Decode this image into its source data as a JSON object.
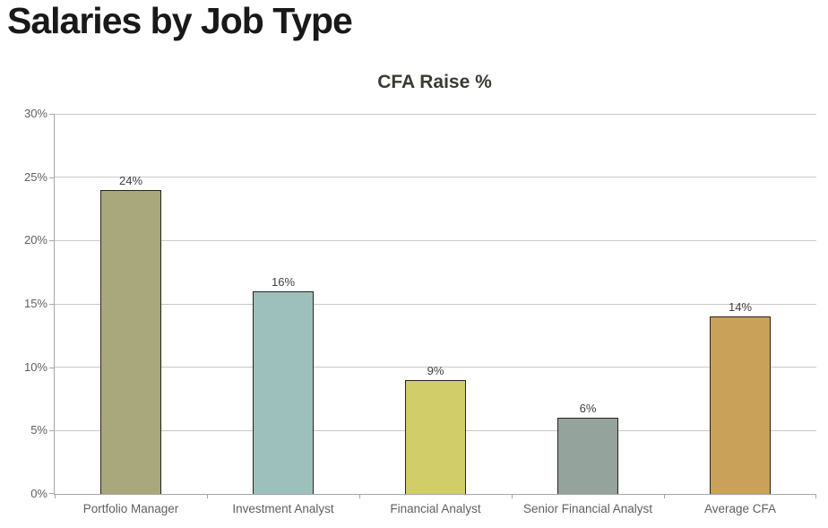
{
  "page": {
    "title": "Salaries by Job Type"
  },
  "chart_data": {
    "type": "bar",
    "title": "CFA Raise %",
    "categories": [
      "Portfolio Manager",
      "Investment Analyst",
      "Financial Analyst",
      "Senior Financial Analyst",
      "Average CFA"
    ],
    "values": [
      24,
      16,
      9,
      6,
      14
    ],
    "data_labels": [
      "24%",
      "16%",
      "9%",
      "6%",
      "14%"
    ],
    "colors": [
      "#a9a77c",
      "#9ec0bc",
      "#d1cd68",
      "#94a39b",
      "#c9a159"
    ],
    "bar_border_color": "#26251a",
    "xlabel": "",
    "ylabel": "",
    "ylim": [
      0,
      30
    ],
    "ytick_step": 5,
    "ytick_labels": [
      "0%",
      "5%",
      "10%",
      "15%",
      "20%",
      "25%",
      "30%"
    ],
    "grid": "horizontal",
    "legend": "none",
    "gridline_color": "#c9c9c9",
    "axis_color": "#a6a6a6",
    "tick_label_color": "#5f5f5f",
    "data_label_color": "#404040",
    "title_color": "#3b3a33"
  }
}
